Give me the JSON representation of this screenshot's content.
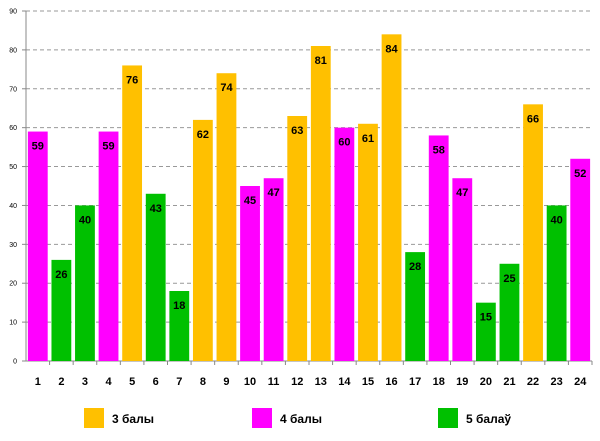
{
  "chart_data": {
    "type": "bar",
    "title": "",
    "xlabel": "",
    "ylabel": "",
    "ylim": [
      0,
      90
    ],
    "yticks": [
      0,
      10,
      20,
      30,
      40,
      50,
      60,
      70,
      80,
      90
    ],
    "grid": true,
    "legend_position": "bottom",
    "categories": [
      "1",
      "2",
      "3",
      "4",
      "5",
      "6",
      "7",
      "8",
      "9",
      "10",
      "11",
      "12",
      "13",
      "14",
      "15",
      "16",
      "17",
      "18",
      "19",
      "20",
      "21",
      "22",
      "23",
      "24"
    ],
    "values": [
      59,
      26,
      40,
      59,
      76,
      43,
      18,
      62,
      74,
      45,
      47,
      63,
      81,
      60,
      61,
      84,
      28,
      58,
      47,
      15,
      25,
      66,
      40,
      52
    ],
    "series_of_bar": [
      "4",
      "5",
      "5",
      "4",
      "3",
      "5",
      "5",
      "3",
      "3",
      "4",
      "4",
      "3",
      "3",
      "4",
      "3",
      "3",
      "5",
      "4",
      "4",
      "5",
      "5",
      "3",
      "5",
      "4"
    ],
    "series": [
      {
        "key": "3",
        "name": "3 балы",
        "color": "#FFC000"
      },
      {
        "key": "4",
        "name": "4 балы",
        "color": "#FF00FF"
      },
      {
        "key": "5",
        "name": "5 балаў",
        "color": "#00C000"
      }
    ]
  }
}
